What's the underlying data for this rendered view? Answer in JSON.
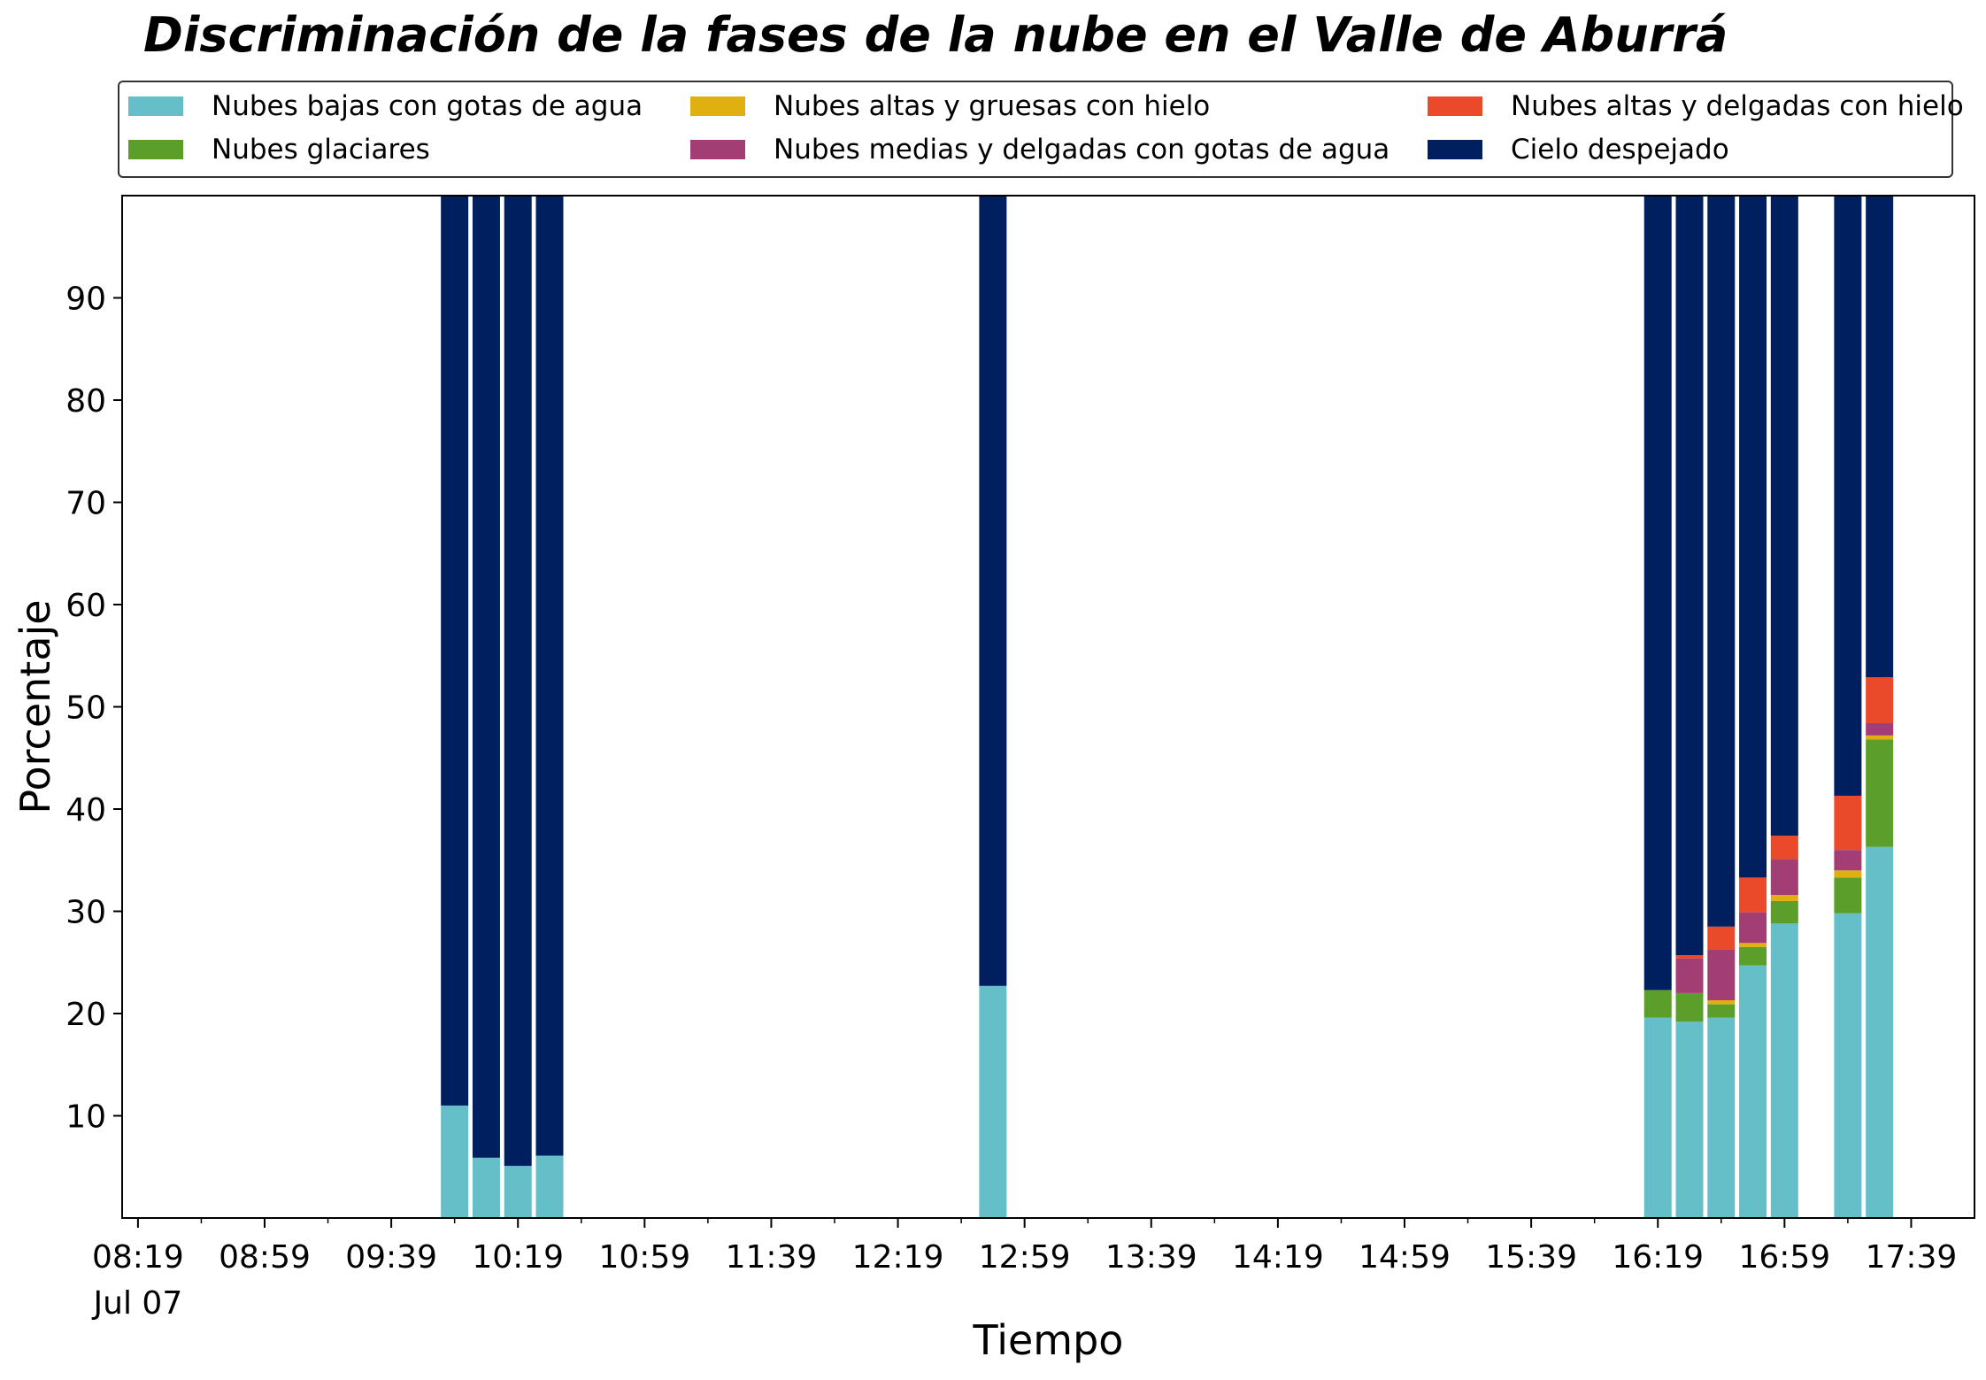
{
  "chart_data": {
    "type": "bar",
    "stacked": true,
    "title": "Discriminación de la fases de la nube en el Valle de Aburrá",
    "xlabel": "Tiempo",
    "ylabel": "Porcentaje",
    "date_label": "Jul 07",
    "ylim": [
      0,
      100
    ],
    "yticks": [
      10,
      20,
      30,
      40,
      50,
      60,
      70,
      80,
      90
    ],
    "xlim": [
      "08:14",
      "17:59"
    ],
    "xtick_labels": [
      "08:19",
      "08:59",
      "09:39",
      "10:19",
      "10:59",
      "11:39",
      "12:19",
      "12:59",
      "13:39",
      "14:19",
      "14:59",
      "15:39",
      "16:19",
      "16:59",
      "17:39"
    ],
    "grid": false,
    "legend_position": "top",
    "categories": [
      "09:59",
      "10:09",
      "10:19",
      "10:29",
      "12:49",
      "16:19",
      "16:29",
      "16:39",
      "16:49",
      "16:59",
      "17:19",
      "17:29"
    ],
    "series": [
      {
        "name": "Nubes bajas con gotas de agua",
        "color": "#64bfc9",
        "values": [
          11.0,
          5.9,
          5.1,
          6.1,
          22.7,
          19.6,
          19.2,
          19.6,
          24.7,
          28.8,
          29.8,
          36.3
        ]
      },
      {
        "name": "Nubes glaciares",
        "color": "#5b9e2a",
        "values": [
          0,
          0,
          0,
          0,
          0,
          2.7,
          2.8,
          1.3,
          1.8,
          2.2,
          3.5,
          10.5
        ]
      },
      {
        "name": "Nubes altas y gruesas con hielo",
        "color": "#e0b010",
        "values": [
          0,
          0,
          0,
          0,
          0,
          0,
          0,
          0.4,
          0.4,
          0.6,
          0.7,
          0.4
        ]
      },
      {
        "name": "Nubes medias y delgadas con gotas de agua",
        "color": "#a23e74",
        "values": [
          0,
          0,
          0,
          0,
          0,
          0,
          3.4,
          5.0,
          3.0,
          3.5,
          2.0,
          1.2
        ]
      },
      {
        "name": "Nubes altas y delgadas con hielo",
        "color": "#ea4a2a",
        "values": [
          0,
          0,
          0,
          0,
          0,
          0,
          0.3,
          2.2,
          3.4,
          2.3,
          5.3,
          4.5
        ]
      },
      {
        "name": "Cielo despejado",
        "color": "#001f5e",
        "values": [
          89.0,
          94.1,
          94.9,
          93.9,
          77.3,
          77.7,
          74.3,
          71.5,
          66.7,
          62.6,
          58.7,
          47.1
        ]
      }
    ]
  }
}
